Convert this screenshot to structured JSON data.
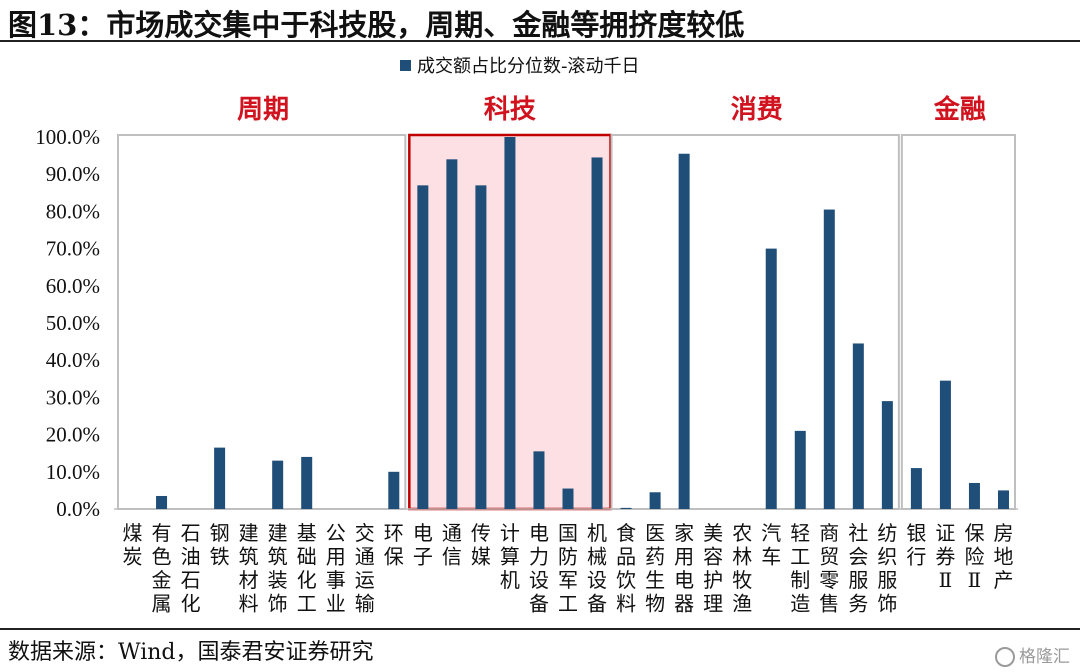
{
  "title": "图13：市场成交集中于科技股，周期、金融等拥挤度较低",
  "source": "数据来源：Wind，国泰君安证券研究",
  "watermark": "格隆汇",
  "colors": {
    "bar": "#1f4e79",
    "highlight_fill": "#fde0e4",
    "highlight_border": "#c00000",
    "group_label": "#d0131e",
    "group_border": "#bfbfbf"
  },
  "chart_data": {
    "type": "bar",
    "legend": "成交额占比分位数-滚动千日",
    "legend_position": "top",
    "ylim": [
      0,
      100
    ],
    "yticks": [
      "0.0%",
      "10.0%",
      "20.0%",
      "30.0%",
      "40.0%",
      "50.0%",
      "60.0%",
      "70.0%",
      "80.0%",
      "90.0%",
      "100.0%"
    ],
    "categories": [
      "煤炭",
      "有色金属",
      "石油石化",
      "钢铁",
      "建筑材料",
      "建筑装饰",
      "基础化工",
      "公用事业",
      "交通运输",
      "环保",
      "电子",
      "通信",
      "传媒",
      "计算机",
      "电力设备",
      "国防军工",
      "机械设备",
      "食品饮料",
      "医药生物",
      "家用电器",
      "美容护理",
      "农林牧渔",
      "汽车",
      "轻工制造",
      "商贸零售",
      "社会服务",
      "纺织服饰",
      "银行",
      "证券II",
      "保险II",
      "房地产"
    ],
    "values": [
      0,
      3.5,
      0,
      16.5,
      0,
      13,
      14,
      0,
      0,
      10,
      87,
      94,
      87,
      100,
      15.5,
      5.5,
      94.5,
      0.3,
      4.5,
      95.5,
      0,
      0,
      70,
      21,
      80.5,
      44.5,
      29,
      11,
      34.5,
      7,
      5
    ],
    "groups": [
      {
        "label": "周期",
        "start": 0,
        "end": 9
      },
      {
        "label": "科技",
        "start": 10,
        "end": 16
      },
      {
        "label": "消费",
        "start": 17,
        "end": 26
      },
      {
        "label": "金融",
        "start": 27,
        "end": 30
      }
    ]
  }
}
